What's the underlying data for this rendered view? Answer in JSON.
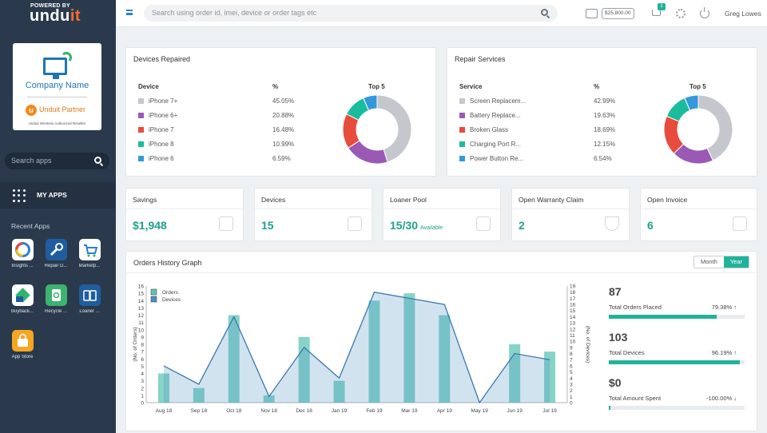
{
  "sidebar": {
    "powered_by": "POWERED BY",
    "brand_a": "undu",
    "brand_b": "it",
    "company_name": "Company Name",
    "partner_label": "Unduit Partner",
    "reseller_label": "Unduit Wireless Authorized Reseller",
    "search_placeholder": "Search apps",
    "my_apps_label": "MY APPS",
    "recent_apps_label": "Recent Apps",
    "apps": [
      {
        "name": "Insights ...",
        "color": "#ffffff"
      },
      {
        "name": "Repair D...",
        "color": "#1f5d9e"
      },
      {
        "name": "Marketp...",
        "color": "#ffffff"
      },
      {
        "name": "Buyback...",
        "color": "#ffffff"
      },
      {
        "name": "Recycle ...",
        "color": "#3cb371"
      },
      {
        "name": "Loaner ...",
        "color": "#1f5d9e"
      },
      {
        "name": "App Store",
        "color": "#f5a623"
      }
    ]
  },
  "topbar": {
    "search_placeholder": "Search using order id, imei, device or order tags etc",
    "balance": "$25,800.00",
    "cart_count": "1",
    "user_name": "Greg Lowes"
  },
  "devices_repaired": {
    "title": "Devices Repaired",
    "col_device": "Device",
    "col_pct": "%",
    "col_top": "Top 5",
    "rows": [
      {
        "label": "iPhone 7+",
        "pct": "45.05%",
        "value": 45.05,
        "color": "#c4c8cc"
      },
      {
        "label": "iPhone 6+",
        "pct": "20.88%",
        "value": 20.88,
        "color": "#9b59b6"
      },
      {
        "label": "iPhone 7",
        "pct": "16.48%",
        "value": 16.48,
        "color": "#e74c3c"
      },
      {
        "label": "iPhone 8",
        "pct": "10.99%",
        "value": 10.99,
        "color": "#1abc9c"
      },
      {
        "label": "iPhone 6",
        "pct": "6.59%",
        "value": 6.59,
        "color": "#3498db"
      }
    ]
  },
  "repair_services": {
    "title": "Repair Services",
    "col_service": "Service",
    "col_pct": "%",
    "col_top": "Top 5",
    "rows": [
      {
        "label": "Screen Replacem...",
        "pct": "42.99%",
        "value": 42.99,
        "color": "#c4c8cc"
      },
      {
        "label": "Battery Replace...",
        "pct": "19.63%",
        "value": 19.63,
        "color": "#9b59b6"
      },
      {
        "label": "Broken Glass",
        "pct": "18.69%",
        "value": 18.69,
        "color": "#e74c3c"
      },
      {
        "label": "Charging Port R...",
        "pct": "12.15%",
        "value": 12.15,
        "color": "#1abc9c"
      },
      {
        "label": "Power Button Re...",
        "pct": "6.54%",
        "value": 6.54,
        "color": "#3498db"
      }
    ]
  },
  "stats": [
    {
      "label": "Savings",
      "value": "$1,948",
      "sub": ""
    },
    {
      "label": "Devices",
      "value": "15",
      "sub": ""
    },
    {
      "label": "Loaner Pool",
      "value": "15/30",
      "sub": "Available"
    },
    {
      "label": "Open Warranty Claim",
      "value": "2",
      "sub": ""
    },
    {
      "label": "Open Invoice",
      "value": "6",
      "sub": ""
    }
  ],
  "orders_history": {
    "title": "Orders History Graph",
    "toggle_month": "Month",
    "toggle_year": "Year",
    "kpis": [
      {
        "value": "87",
        "label": "Total Orders Placed",
        "pct": "79.38%",
        "fill": 0.7938
      },
      {
        "value": "103",
        "label": "Total Devices",
        "pct": "96.19%",
        "fill": 0.9619
      },
      {
        "value": "$0",
        "label": "Total Amount Spent",
        "pct": "-100.00%",
        "fill": 0.01
      }
    ]
  },
  "chart_data": {
    "type": "bar",
    "categories": [
      "Aug 18",
      "Sep 18",
      "Oct 18",
      "Nov 18",
      "Dec 18",
      "Jan 19",
      "Feb 19",
      "Mar 19",
      "Apr 19",
      "May 19",
      "Jun 19",
      "Jul 19"
    ],
    "series": [
      {
        "name": "Orders",
        "type": "bar",
        "axis": "left",
        "color": "#5ec4b6",
        "values": [
          4,
          2,
          12,
          1,
          9,
          3,
          14,
          15,
          12,
          0,
          8,
          7
        ]
      },
      {
        "name": "Devices",
        "type": "area",
        "axis": "right",
        "color": "#4a8fc4",
        "values": [
          6,
          3,
          14,
          1,
          9,
          4,
          18,
          17,
          16,
          0,
          8,
          7
        ]
      }
    ],
    "ylabel": "(No. of Orders)",
    "y2label": "(No. of Devices)",
    "ylim": [
      0,
      16
    ],
    "y2lim": [
      0,
      19
    ],
    "yticks": [
      "0",
      "1",
      "2",
      "3",
      "4",
      "5",
      "6",
      "7",
      "8",
      "9",
      "10",
      "11",
      "12",
      "13",
      "14",
      "15",
      "16"
    ],
    "y2ticks": [
      "0",
      "1",
      "2",
      "3",
      "4",
      "5",
      "6",
      "7",
      "8",
      "9",
      "10",
      "11",
      "12",
      "13",
      "14",
      "15",
      "16",
      "17",
      "18",
      "19"
    ],
    "legend": "top-left"
  }
}
